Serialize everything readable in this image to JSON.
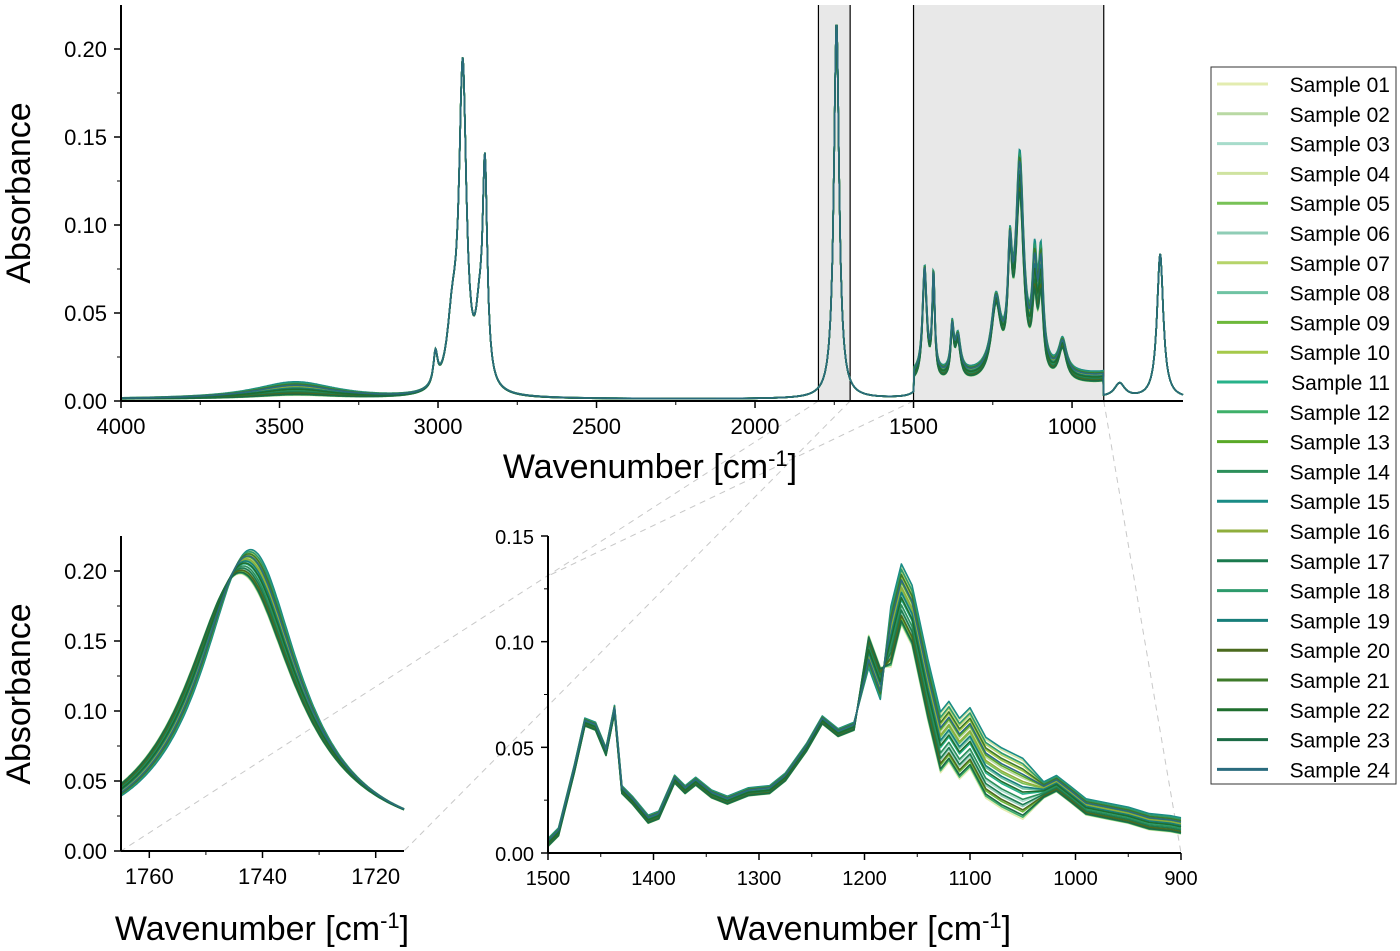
{
  "legend": {
    "position": "right",
    "items": [
      {
        "label": "Sample 01",
        "color": "#e3ecb0"
      },
      {
        "label": "Sample 02",
        "color": "#b9d9a4"
      },
      {
        "label": "Sample 03",
        "color": "#a7dccb"
      },
      {
        "label": "Sample 04",
        "color": "#cfe3a0"
      },
      {
        "label": "Sample 05",
        "color": "#78c257"
      },
      {
        "label": "Sample 06",
        "color": "#8fcdb6"
      },
      {
        "label": "Sample 07",
        "color": "#b6d46a"
      },
      {
        "label": "Sample 08",
        "color": "#6fc3a3"
      },
      {
        "label": "Sample 09",
        "color": "#6db83a"
      },
      {
        "label": "Sample 10",
        "color": "#a5c94a"
      },
      {
        "label": "Sample 11",
        "color": "#27b28a"
      },
      {
        "label": "Sample 12",
        "color": "#3fb06a"
      },
      {
        "label": "Sample 13",
        "color": "#5aa928"
      },
      {
        "label": "Sample 14",
        "color": "#2c8f5a"
      },
      {
        "label": "Sample 15",
        "color": "#1a8c86"
      },
      {
        "label": "Sample 16",
        "color": "#8fae3c"
      },
      {
        "label": "Sample 17",
        "color": "#1b7a4f"
      },
      {
        "label": "Sample 18",
        "color": "#2d9a6c"
      },
      {
        "label": "Sample 19",
        "color": "#177e7a"
      },
      {
        "label": "Sample 20",
        "color": "#4b6a1e"
      },
      {
        "label": "Sample 21",
        "color": "#3d7a2a"
      },
      {
        "label": "Sample 22",
        "color": "#1f6e2e"
      },
      {
        "label": "Sample 23",
        "color": "#1b6b45"
      },
      {
        "label": "Sample 24",
        "color": "#2a6b7e"
      }
    ]
  },
  "chart_data": [
    {
      "type": "line",
      "panel": "top",
      "xlabel": "Wavenumber [cm",
      "xlabel_sup": "-1",
      "xlabel_suffix": "]",
      "ylabel": "Absorbance",
      "xlim": [
        4000,
        650
      ],
      "ylim": [
        0,
        0.225
      ],
      "x_reversed": true,
      "x_ticks": [
        {
          "value": 4000,
          "label": "4000"
        },
        {
          "value": 3500,
          "label": "3500"
        },
        {
          "value": 3000,
          "label": "3000"
        },
        {
          "value": 2500,
          "label": "2500"
        },
        {
          "value": 2000,
          "label": "2000"
        },
        {
          "value": 1500,
          "label": "1500"
        },
        {
          "value": 1000,
          "label": "1000"
        }
      ],
      "y_ticks": [
        {
          "value": 0,
          "label": "0.00"
        },
        {
          "value": 0.05,
          "label": "0.05"
        },
        {
          "value": 0.1,
          "label": "0.10"
        },
        {
          "value": 0.15,
          "label": "0.15"
        },
        {
          "value": 0.2,
          "label": "0.20"
        }
      ],
      "shaded_regions": [
        [
          1800,
          1700
        ],
        [
          1500,
          900
        ]
      ],
      "curve_peaks": [
        {
          "x": 3450,
          "y": 0.006,
          "width": 160
        },
        {
          "x": 3008,
          "y": 0.018,
          "width": 8
        },
        {
          "x": 2955,
          "y": 0.035,
          "width": 20
        },
        {
          "x": 2922,
          "y": 0.18,
          "width": 14
        },
        {
          "x": 2870,
          "y": 0.03,
          "width": 14
        },
        {
          "x": 2852,
          "y": 0.12,
          "width": 9
        },
        {
          "x": 1743,
          "y": 0.214,
          "width": 10
        },
        {
          "x": 1465,
          "y": 0.06,
          "width": 8
        },
        {
          "x": 1437,
          "y": 0.055,
          "width": 5
        },
        {
          "x": 1378,
          "y": 0.025,
          "width": 6
        },
        {
          "x": 1360,
          "y": 0.02,
          "width": 10
        },
        {
          "x": 1240,
          "y": 0.04,
          "width": 18
        },
        {
          "x": 1196,
          "y": 0.055,
          "width": 8
        },
        {
          "x": 1165,
          "y": 0.11,
          "width": 15
        },
        {
          "x": 1118,
          "y": 0.045,
          "width": 9
        },
        {
          "x": 1098,
          "y": 0.05,
          "width": 9
        },
        {
          "x": 1030,
          "y": 0.018,
          "width": 15
        },
        {
          "x": 850,
          "y": 0.008,
          "width": 20
        },
        {
          "x": 722,
          "y": 0.082,
          "width": 12
        }
      ]
    },
    {
      "type": "line",
      "panel": "bottom-left",
      "xlabel": "Wavenumber [cm",
      "xlabel_sup": "-1",
      "xlabel_suffix": "]",
      "ylabel": "Absorbance",
      "xlim": [
        1765,
        1715
      ],
      "ylim": [
        0,
        0.225
      ],
      "x_reversed": true,
      "x_ticks": [
        {
          "value": 1760,
          "label": "1760"
        },
        {
          "value": 1740,
          "label": "1740"
        },
        {
          "value": 1720,
          "label": "1720"
        }
      ],
      "y_ticks": [
        {
          "value": 0,
          "label": "0.00"
        },
        {
          "value": 0.05,
          "label": "0.05"
        },
        {
          "value": 0.1,
          "label": "0.10"
        },
        {
          "value": 0.15,
          "label": "0.15"
        },
        {
          "value": 0.2,
          "label": "0.20"
        }
      ],
      "peak_center_range": [
        1742,
        1744
      ],
      "peak_height_range": [
        0.196,
        0.214
      ]
    },
    {
      "type": "line",
      "panel": "bottom-right",
      "xlabel": "Wavenumber [cm",
      "xlabel_sup": "-1",
      "xlabel_suffix": "]",
      "ylabel": "",
      "xlim": [
        1500,
        900
      ],
      "ylim": [
        0,
        0.15
      ],
      "x_reversed": true,
      "x_ticks": [
        {
          "value": 1500,
          "label": "1500"
        },
        {
          "value": 1400,
          "label": "1400"
        },
        {
          "value": 1300,
          "label": "1300"
        },
        {
          "value": 1200,
          "label": "1200"
        },
        {
          "value": 1100,
          "label": "1100"
        },
        {
          "value": 1000,
          "label": "1000"
        },
        {
          "value": 900,
          "label": "900"
        }
      ],
      "y_ticks": [
        {
          "value": 0,
          "label": "0.00"
        },
        {
          "value": 0.05,
          "label": "0.05"
        },
        {
          "value": 0.1,
          "label": "0.10"
        },
        {
          "value": 0.15,
          "label": "0.15"
        }
      ],
      "points": [
        [
          1500,
          0.005
        ],
        [
          1490,
          0.01
        ],
        [
          1475,
          0.04
        ],
        [
          1465,
          0.062
        ],
        [
          1455,
          0.06
        ],
        [
          1445,
          0.048
        ],
        [
          1437,
          0.068
        ],
        [
          1430,
          0.03
        ],
        [
          1420,
          0.025
        ],
        [
          1405,
          0.016
        ],
        [
          1395,
          0.018
        ],
        [
          1380,
          0.035
        ],
        [
          1370,
          0.03
        ],
        [
          1360,
          0.034
        ],
        [
          1345,
          0.028
        ],
        [
          1330,
          0.025
        ],
        [
          1310,
          0.029
        ],
        [
          1290,
          0.03
        ],
        [
          1275,
          0.036
        ],
        [
          1255,
          0.05
        ],
        [
          1240,
          0.063
        ],
        [
          1225,
          0.057
        ],
        [
          1210,
          0.06
        ],
        [
          1196,
          0.095
        ],
        [
          1185,
          0.08
        ],
        [
          1175,
          0.1
        ],
        [
          1165,
          0.12
        ],
        [
          1155,
          0.11
        ],
        [
          1140,
          0.075
        ],
        [
          1128,
          0.05
        ],
        [
          1120,
          0.055
        ],
        [
          1110,
          0.047
        ],
        [
          1100,
          0.052
        ],
        [
          1085,
          0.038
        ],
        [
          1070,
          0.033
        ],
        [
          1050,
          0.028
        ],
        [
          1030,
          0.03
        ],
        [
          1018,
          0.033
        ],
        [
          1005,
          0.028
        ],
        [
          990,
          0.022
        ],
        [
          970,
          0.02
        ],
        [
          950,
          0.018
        ],
        [
          930,
          0.015
        ],
        [
          910,
          0.014
        ],
        [
          900,
          0.013
        ]
      ]
    }
  ]
}
